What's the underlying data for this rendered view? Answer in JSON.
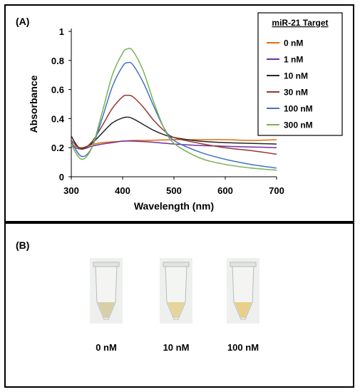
{
  "panel_a": {
    "label": "(A)"
  },
  "panel_b": {
    "label": "(B)",
    "tubes": [
      {
        "caption": "0 nM",
        "fill_color": "#d8cfa8"
      },
      {
        "caption": "10 nM",
        "fill_color": "#e6d49a"
      },
      {
        "caption": "100 nM",
        "fill_color": "#e8d08a"
      }
    ]
  },
  "chart_data": {
    "type": "line",
    "xlabel": "Wavelength (nm)",
    "ylabel": "Absorbance",
    "xlim": [
      300,
      700
    ],
    "ylim": [
      0,
      1
    ],
    "x_ticks": [
      "300",
      "400",
      "500",
      "600",
      "700"
    ],
    "y_ticks": [
      "0",
      "0.2",
      "0.4",
      "0.6",
      "0.8",
      "1"
    ],
    "grid": false,
    "legend_title": "miR-21 Target",
    "legend_position": "top-right",
    "series": [
      {
        "name": "0 nM",
        "color": "#e36c09",
        "points": [
          [
            300,
            0.22
          ],
          [
            320,
            0.2
          ],
          [
            340,
            0.22
          ],
          [
            360,
            0.235
          ],
          [
            380,
            0.24
          ],
          [
            400,
            0.245
          ],
          [
            420,
            0.25
          ],
          [
            450,
            0.25
          ],
          [
            500,
            0.255
          ],
          [
            550,
            0.255
          ],
          [
            600,
            0.255
          ],
          [
            650,
            0.25
          ],
          [
            700,
            0.255
          ]
        ]
      },
      {
        "name": "1 nM",
        "color": "#7030a0",
        "points": [
          [
            300,
            0.21
          ],
          [
            320,
            0.19
          ],
          [
            340,
            0.21
          ],
          [
            360,
            0.225
          ],
          [
            380,
            0.235
          ],
          [
            400,
            0.245
          ],
          [
            420,
            0.245
          ],
          [
            450,
            0.24
          ],
          [
            500,
            0.225
          ],
          [
            550,
            0.215
          ],
          [
            600,
            0.21
          ],
          [
            650,
            0.205
          ],
          [
            700,
            0.2
          ]
        ]
      },
      {
        "name": "10 nM",
        "color": "#262626",
        "points": [
          [
            300,
            0.28
          ],
          [
            310,
            0.22
          ],
          [
            320,
            0.195
          ],
          [
            340,
            0.23
          ],
          [
            360,
            0.3
          ],
          [
            380,
            0.37
          ],
          [
            400,
            0.405
          ],
          [
            410,
            0.41
          ],
          [
            420,
            0.4
          ],
          [
            440,
            0.36
          ],
          [
            460,
            0.32
          ],
          [
            480,
            0.29
          ],
          [
            500,
            0.27
          ],
          [
            550,
            0.245
          ],
          [
            600,
            0.235
          ],
          [
            650,
            0.23
          ],
          [
            700,
            0.225
          ]
        ]
      },
      {
        "name": "30 nM",
        "color": "#953735",
        "points": [
          [
            300,
            0.25
          ],
          [
            320,
            0.19
          ],
          [
            340,
            0.24
          ],
          [
            360,
            0.35
          ],
          [
            380,
            0.47
          ],
          [
            400,
            0.55
          ],
          [
            410,
            0.56
          ],
          [
            420,
            0.55
          ],
          [
            440,
            0.48
          ],
          [
            460,
            0.39
          ],
          [
            480,
            0.32
          ],
          [
            500,
            0.27
          ],
          [
            550,
            0.23
          ],
          [
            600,
            0.2
          ],
          [
            650,
            0.18
          ],
          [
            700,
            0.155
          ]
        ]
      },
      {
        "name": "100 nM",
        "color": "#4472c4",
        "points": [
          [
            300,
            0.24
          ],
          [
            320,
            0.14
          ],
          [
            340,
            0.2
          ],
          [
            360,
            0.4
          ],
          [
            380,
            0.62
          ],
          [
            400,
            0.76
          ],
          [
            410,
            0.785
          ],
          [
            420,
            0.77
          ],
          [
            440,
            0.65
          ],
          [
            460,
            0.49
          ],
          [
            480,
            0.34
          ],
          [
            500,
            0.25
          ],
          [
            550,
            0.17
          ],
          [
            600,
            0.12
          ],
          [
            650,
            0.085
          ],
          [
            700,
            0.06
          ]
        ]
      },
      {
        "name": "300 nM",
        "color": "#77b254",
        "points": [
          [
            300,
            0.22
          ],
          [
            320,
            0.12
          ],
          [
            340,
            0.2
          ],
          [
            360,
            0.44
          ],
          [
            380,
            0.7
          ],
          [
            400,
            0.85
          ],
          [
            410,
            0.88
          ],
          [
            420,
            0.865
          ],
          [
            440,
            0.73
          ],
          [
            460,
            0.52
          ],
          [
            480,
            0.34
          ],
          [
            500,
            0.23
          ],
          [
            550,
            0.13
          ],
          [
            600,
            0.085
          ],
          [
            650,
            0.06
          ],
          [
            700,
            0.045
          ]
        ]
      }
    ]
  }
}
